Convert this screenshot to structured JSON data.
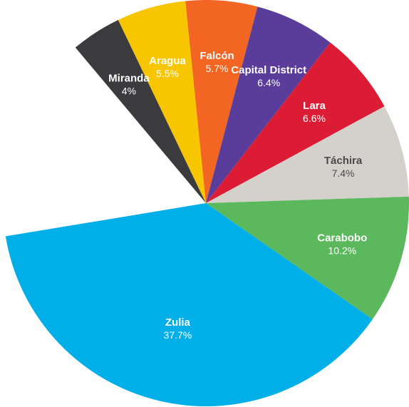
{
  "chart_data": {
    "type": "pie",
    "title": "",
    "slices": [
      {
        "name": "Zulia",
        "value": 37.7,
        "label": "37.7%",
        "color": "#00afe8"
      },
      {
        "name": "Miranda",
        "value": 4.0,
        "label": "4%",
        "color": "#3b3b3d"
      },
      {
        "name": "Aragua",
        "value": 5.5,
        "label": "5.5%",
        "color": "#f7c600"
      },
      {
        "name": "Falcón",
        "value": 5.7,
        "label": "5.7%",
        "color": "#f26522"
      },
      {
        "name": "Capital District",
        "value": 6.4,
        "label": "6.4%",
        "color": "#5a3d9a"
      },
      {
        "name": "Lara",
        "value": 6.6,
        "label": "6.6%",
        "color": "#dc1c35"
      },
      {
        "name": "Táchira",
        "value": 7.4,
        "label": "7.4%",
        "color": "#d4d1cc"
      },
      {
        "name": "Carabobo",
        "value": 10.2,
        "label": "10.2%",
        "color": "#5cb85c"
      }
    ],
    "label_text_color": "#ffffff",
    "label_text_color_light_slice": "#4a4a4a"
  }
}
